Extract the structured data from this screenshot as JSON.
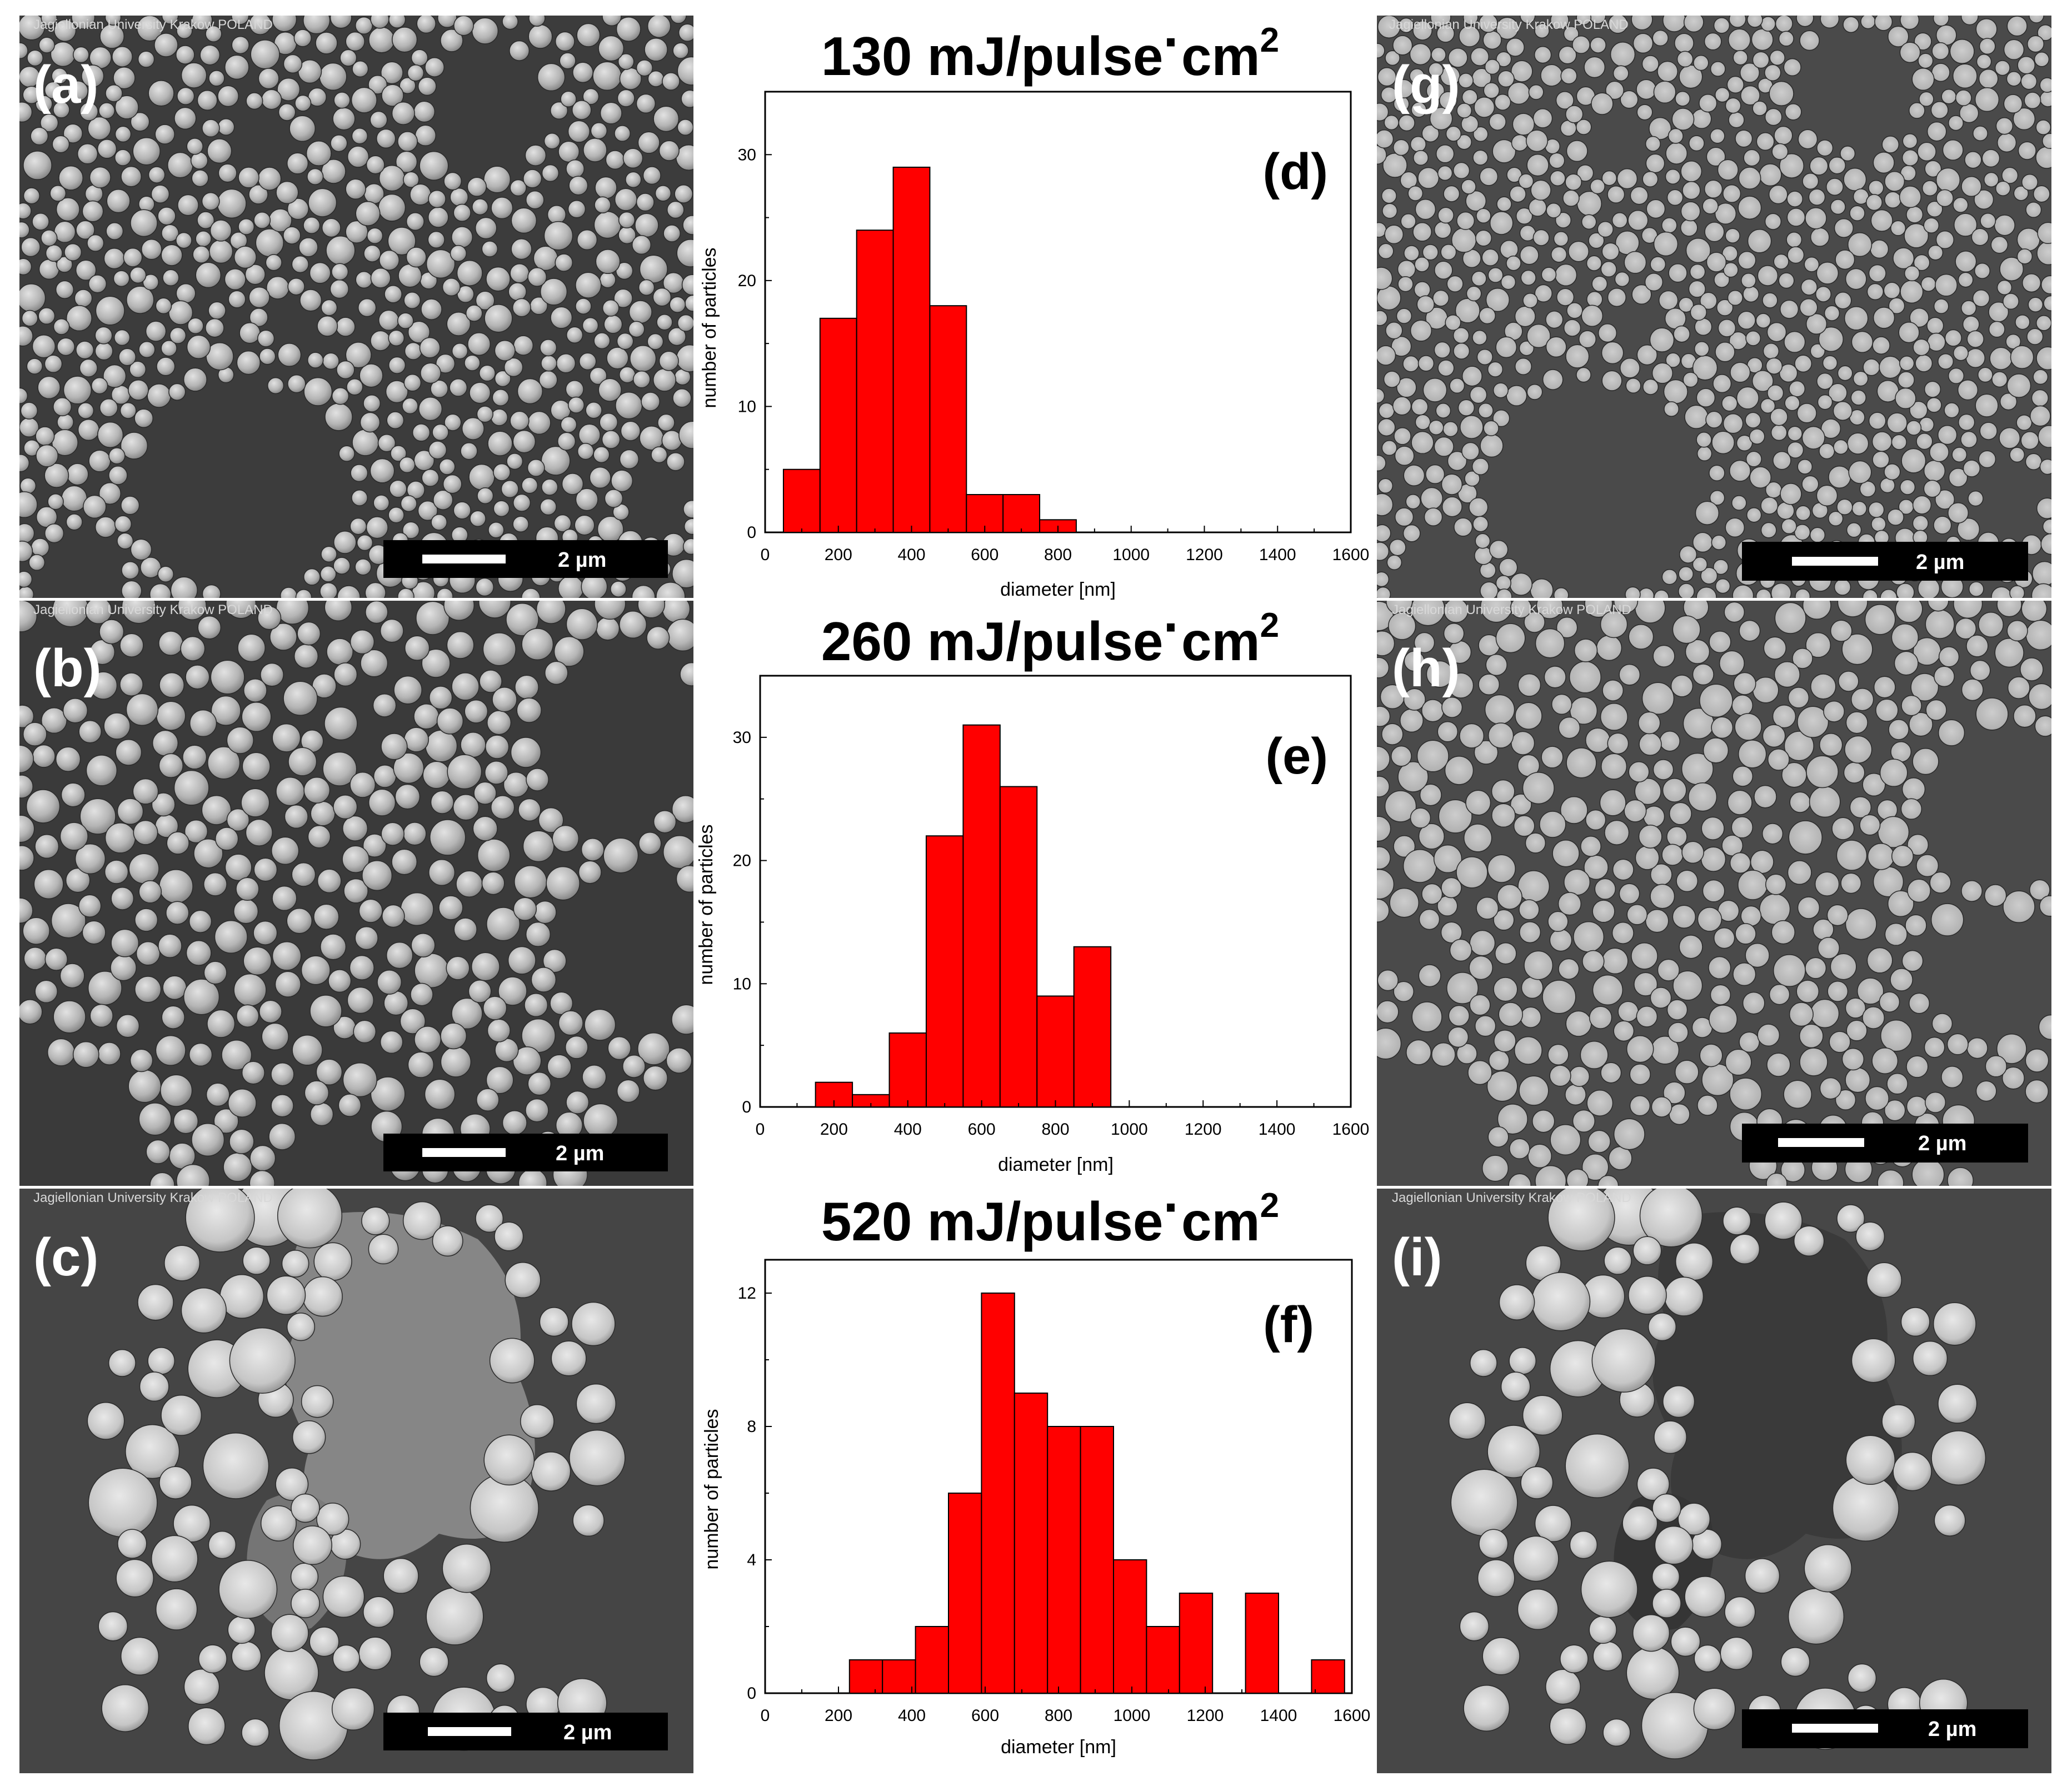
{
  "sem_panels": [
    {
      "label": "(a)",
      "watermark": "Jagiellonian University Krakow POLAND",
      "scalebar": "2 µm"
    },
    {
      "label": "(b)",
      "watermark": "Jagiellonian University Krakow POLAND",
      "scalebar": "2 µm"
    },
    {
      "label": "(c)",
      "watermark": "Jagiellonian University Krakow POLAND",
      "scalebar": "2 µm"
    },
    {
      "label": "(g)",
      "watermark": "Jagiellonian University Krakow POLAND",
      "scalebar": "2 µm"
    },
    {
      "label": "(h)",
      "watermark": "Jagiellonian University Krakow POLAND",
      "scalebar": "2 µm"
    },
    {
      "label": "(i)",
      "watermark": "Jagiellonian University Krakow POLAND",
      "scalebar": "2 µm"
    }
  ],
  "colors": {
    "bar_fill": "#ff0000",
    "bar_stroke": "#000000",
    "sem_background": "#3c3c3c",
    "sem_particle": "#b9b9b9"
  },
  "chart_data": [
    {
      "type": "bar",
      "title_main": "130 mJ/pulse",
      "title_dot": "·",
      "title_unit": "cm",
      "title_sup": "2",
      "panel_label": "(d)",
      "xlabel": "diameter [nm]",
      "ylabel": "number of particles",
      "xlim": [
        0,
        1600
      ],
      "ylim": [
        0,
        35
      ],
      "xticks": [
        0,
        200,
        400,
        600,
        800,
        1000,
        1200,
        1400,
        1600
      ],
      "yticks": [
        0,
        10,
        20,
        30
      ],
      "bin_width": 100,
      "bin_starts": [
        50,
        150,
        250,
        350,
        450,
        550,
        650,
        750
      ],
      "values": [
        5,
        17,
        24,
        29,
        18,
        3,
        3,
        1
      ]
    },
    {
      "type": "bar",
      "title_main": "260 mJ/pulse",
      "title_dot": "·",
      "title_unit": "cm",
      "title_sup": "2",
      "panel_label": "(e)",
      "xlabel": "diameter [nm]",
      "ylabel": "number of particles",
      "xlim": [
        0,
        1600
      ],
      "ylim": [
        0,
        35
      ],
      "xticks": [
        0,
        200,
        400,
        600,
        800,
        1000,
        1200,
        1400,
        1600
      ],
      "yticks": [
        0,
        10,
        20,
        30
      ],
      "bin_width": 100,
      "bin_starts": [
        150,
        250,
        350,
        450,
        550,
        650,
        750,
        850
      ],
      "values": [
        2,
        1,
        6,
        22,
        31,
        26,
        9,
        13
      ]
    },
    {
      "type": "bar",
      "title_main": "520 mJ/pulse",
      "title_dot": "·",
      "title_unit": "cm",
      "title_sup": "2",
      "panel_label": "(f)",
      "xlabel": "diameter [nm]",
      "ylabel": "number of particles",
      "xlim": [
        0,
        1600
      ],
      "ylim": [
        0,
        13
      ],
      "xticks": [
        0,
        200,
        400,
        600,
        800,
        1000,
        1200,
        1400,
        1600
      ],
      "yticks": [
        0,
        4,
        8,
        12
      ],
      "bin_width": 90,
      "bin_starts": [
        230,
        320,
        410,
        500,
        590,
        680,
        770,
        860,
        950,
        1040,
        1130,
        1220,
        1310,
        1400,
        1490
      ],
      "values": [
        1,
        1,
        2,
        6,
        12,
        9,
        8,
        8,
        4,
        2,
        3,
        0,
        3,
        0,
        1
      ]
    }
  ]
}
